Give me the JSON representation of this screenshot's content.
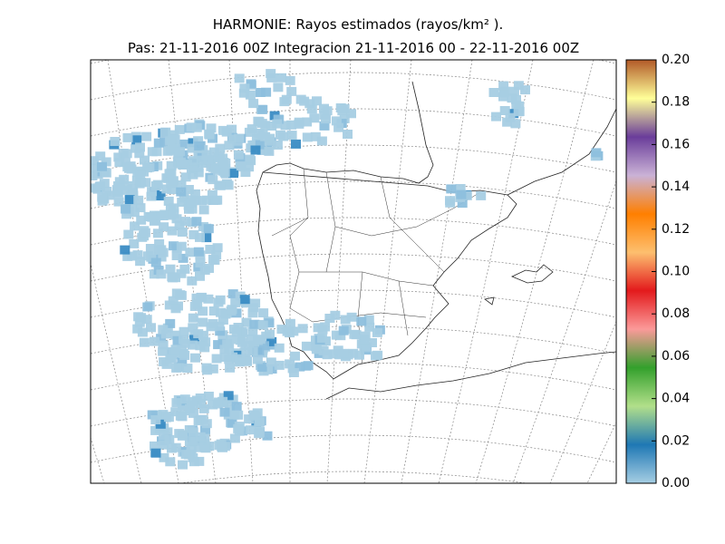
{
  "chart_data": {
    "type": "map",
    "title": "HARMONIE: Rayos estimados  (rayos/km² ).",
    "subtitle": "Pas: 21-11-2016 00Z Integracion 21-11-2016 00 - 22-11-2016 00Z",
    "colorbar": {
      "clim": [
        0,
        0.2
      ],
      "ticks": [
        {
          "value": 0,
          "label": "0.00"
        },
        {
          "value": 0.02,
          "label": "0.02"
        },
        {
          "value": 0.04,
          "label": "0.04"
        },
        {
          "value": 0.06,
          "label": "0.06"
        },
        {
          "value": 0.08,
          "label": "0.08"
        },
        {
          "value": 0.1,
          "label": "0.10"
        },
        {
          "value": 0.12,
          "label": "0.12"
        },
        {
          "value": 0.14,
          "label": "0.14"
        },
        {
          "value": 0.16,
          "label": "0.16"
        },
        {
          "value": 0.18,
          "label": "0.18"
        },
        {
          "value": 0.2,
          "label": "0.20"
        }
      ],
      "colormap": [
        "#a6cee3",
        "#1f78b4",
        "#b2df8a",
        "#33a02c",
        "#fb9a99",
        "#e31a1c",
        "#fdbf6f",
        "#ff7f00",
        "#cab2d6",
        "#6a3d9a",
        "#ffff99",
        "#b15928"
      ]
    },
    "grid": true
  }
}
